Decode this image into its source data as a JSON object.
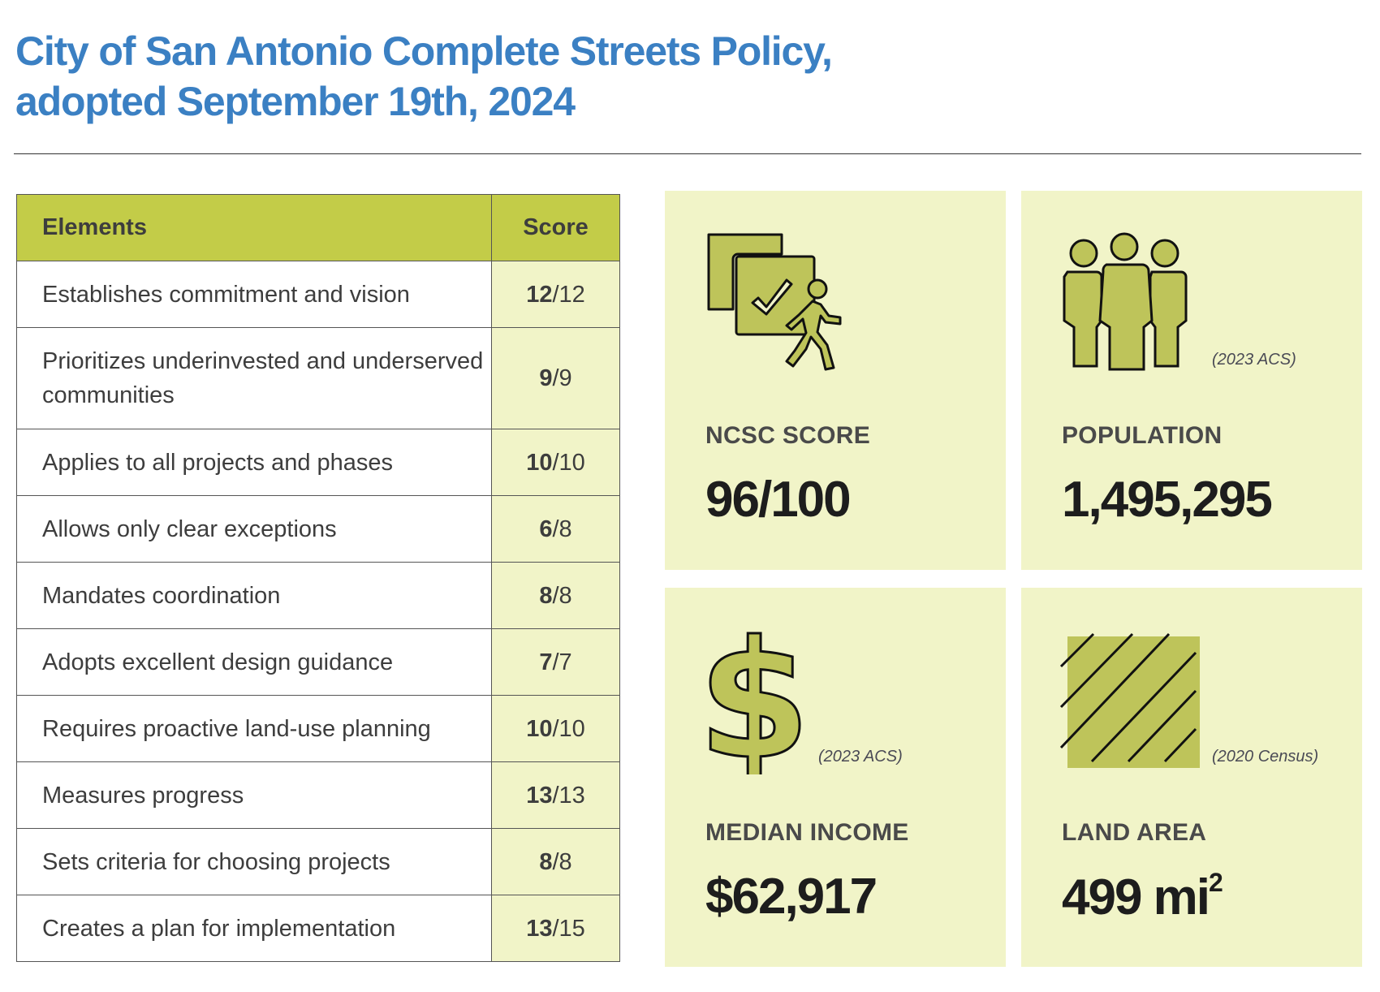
{
  "title": {
    "line1": "City of San Antonio Complete Streets Policy,",
    "line2": "adopted September 19th, 2024"
  },
  "table": {
    "headers": {
      "elements": "Elements",
      "score": "Score"
    },
    "rows": [
      {
        "element": "Establishes commitment and vision",
        "earned": "12",
        "total": "/12"
      },
      {
        "element": "Prioritizes underinvested and underserved communities",
        "earned": "9",
        "total": "/9"
      },
      {
        "element": "Applies to all projects and phases",
        "earned": "10",
        "total": "/10"
      },
      {
        "element": "Allows only clear exceptions",
        "earned": "6",
        "total": "/8"
      },
      {
        "element": "Mandates coordination",
        "earned": "8",
        "total": "/8"
      },
      {
        "element": "Adopts excellent design guidance",
        "earned": "7",
        "total": "/7"
      },
      {
        "element": "Requires proactive land-use planning",
        "earned": "10",
        "total": "/10"
      },
      {
        "element": "Measures progress",
        "earned": "13",
        "total": "/13"
      },
      {
        "element": "Sets criteria for choosing projects",
        "earned": "8",
        "total": "/8"
      },
      {
        "element": "Creates a plan for implementation",
        "earned": "13",
        "total": "/15"
      }
    ]
  },
  "stats": {
    "ncsc": {
      "label": "NCSC SCORE",
      "value": "96/100",
      "icon": "policy-checklist-pedestrian-icon"
    },
    "population": {
      "label": "POPULATION",
      "value": "1,495,295",
      "source": "(2023 ACS)",
      "icon": "people-icon"
    },
    "income": {
      "label": "MEDIAN INCOME",
      "value": "$62,917",
      "source": "(2023 ACS)",
      "icon": "dollar-icon"
    },
    "land": {
      "label": "LAND AREA",
      "value": "499 mi",
      "unit_sup": "2",
      "source": "(2020 Census)",
      "icon": "hatched-area-icon"
    }
  },
  "colors": {
    "title": "#3b80c3",
    "header": "#c3cc48",
    "panel": "#f1f4c8",
    "icon": "#bec45a"
  }
}
